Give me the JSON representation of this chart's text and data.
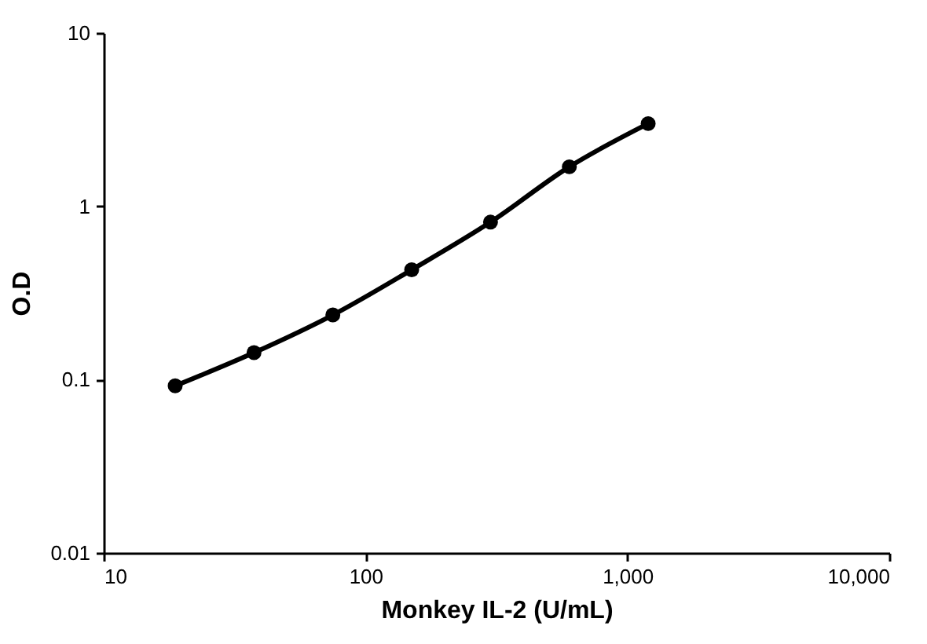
{
  "chart_data": {
    "type": "line",
    "xlabel": "Monkey IL-2 (U/mL)",
    "ylabel": "O.D",
    "log": "xy",
    "x": [
      18.75,
      37.5,
      75,
      150,
      300,
      600,
      1200
    ],
    "series": [
      {
        "color": "#000000",
        "values": [
          0.092,
          0.143,
          0.236,
          0.43,
          0.81,
          1.69,
          3.0
        ]
      }
    ],
    "xlim": [
      10,
      10000
    ],
    "xticks": [
      10,
      100,
      {
        "value": 1000,
        "label": "1,000"
      },
      {
        "value": 10000,
        "label": "10,000"
      }
    ],
    "ylim": [
      0.01,
      10
    ],
    "yticks": [
      0.01,
      0.1,
      1,
      10
    ],
    "grid": false,
    "marker": "circle",
    "line_style": "solid"
  }
}
